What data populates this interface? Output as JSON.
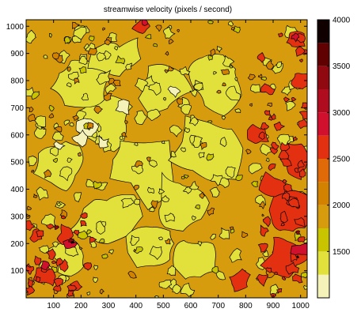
{
  "chart_data": {
    "type": "heatmap",
    "subtype": "filled-contour",
    "title": "streamwise velocity  (pixels / second)",
    "xlabel": "",
    "ylabel": "",
    "xlim": [
      0,
      1024
    ],
    "ylim": [
      0,
      1024
    ],
    "x_ticks": [
      100,
      200,
      300,
      400,
      500,
      600,
      700,
      800,
      900,
      1000
    ],
    "y_ticks": [
      100,
      200,
      300,
      400,
      500,
      600,
      700,
      800,
      900,
      1000
    ],
    "colorbar": {
      "min": 1000,
      "max": 4000,
      "ticks": [
        1500,
        2000,
        2500,
        3000,
        3500,
        4000
      ],
      "levels": [
        {
          "from": 1000,
          "to": 1250,
          "color": "#f4f2b8"
        },
        {
          "from": 1250,
          "to": 1500,
          "color": "#e2e03a"
        },
        {
          "from": 1500,
          "to": 1750,
          "color": "#c8c400"
        },
        {
          "from": 1750,
          "to": 2000,
          "color": "#d69c0e"
        },
        {
          "from": 2000,
          "to": 2250,
          "color": "#d38200"
        },
        {
          "from": 2250,
          "to": 2500,
          "color": "#e06a08"
        },
        {
          "from": 2500,
          "to": 2750,
          "color": "#e23010"
        },
        {
          "from": 2750,
          "to": 3000,
          "color": "#d0102c"
        },
        {
          "from": 3000,
          "to": 3250,
          "color": "#b00c20"
        },
        {
          "from": 3250,
          "to": 3500,
          "color": "#900810"
        },
        {
          "from": 3500,
          "to": 3750,
          "color": "#600000"
        },
        {
          "from": 3750,
          "to": 4000,
          "color": "#100000"
        }
      ]
    },
    "background_level_color": "#d69c0e"
  }
}
